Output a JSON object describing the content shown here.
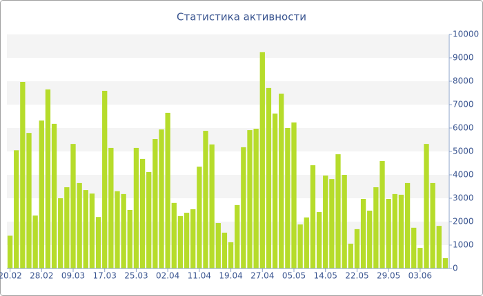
{
  "chart_data": {
    "type": "bar",
    "title": "Статистика активности",
    "categories": [
      "20.02",
      null,
      null,
      null,
      null,
      "28.02",
      null,
      null,
      null,
      null,
      "09.03",
      null,
      null,
      null,
      null,
      "17.03",
      null,
      null,
      null,
      null,
      "25.03",
      null,
      null,
      null,
      null,
      "02.04",
      null,
      null,
      null,
      null,
      "11.04",
      null,
      null,
      null,
      null,
      "19.04",
      null,
      null,
      null,
      null,
      "27.04",
      null,
      null,
      null,
      null,
      "05.05",
      null,
      null,
      null,
      null,
      "14.05",
      null,
      null,
      null,
      null,
      "22.05",
      null,
      null,
      null,
      null,
      "29.05",
      null,
      null,
      null,
      null,
      "03.06",
      null,
      null,
      null,
      null
    ],
    "values": [
      1400,
      5050,
      7970,
      5790,
      2260,
      6320,
      7650,
      6180,
      3000,
      3470,
      5320,
      3650,
      3350,
      3200,
      2200,
      7590,
      5150,
      3300,
      3180,
      2500,
      5150,
      4680,
      4120,
      5530,
      5940,
      6650,
      2800,
      2240,
      2380,
      2530,
      4350,
      5880,
      5300,
      1940,
      1530,
      1120,
      2710,
      5180,
      5910,
      5970,
      9240,
      7710,
      6620,
      7470,
      6000,
      6240,
      1880,
      2180,
      4410,
      2410,
      3970,
      3820,
      4880,
      4000,
      1060,
      1680,
      2970,
      2470,
      3470,
      4590,
      2970,
      3180,
      3150,
      3650,
      1740,
      880,
      5320,
      3650,
      1820,
      440
    ],
    "color": "#b6dc2b",
    "ylim": [
      0,
      10000
    ],
    "yticks": [
      0,
      1000,
      2000,
      3000,
      4000,
      5000,
      6000,
      7000,
      8000,
      9000,
      10000
    ],
    "grid": true
  }
}
